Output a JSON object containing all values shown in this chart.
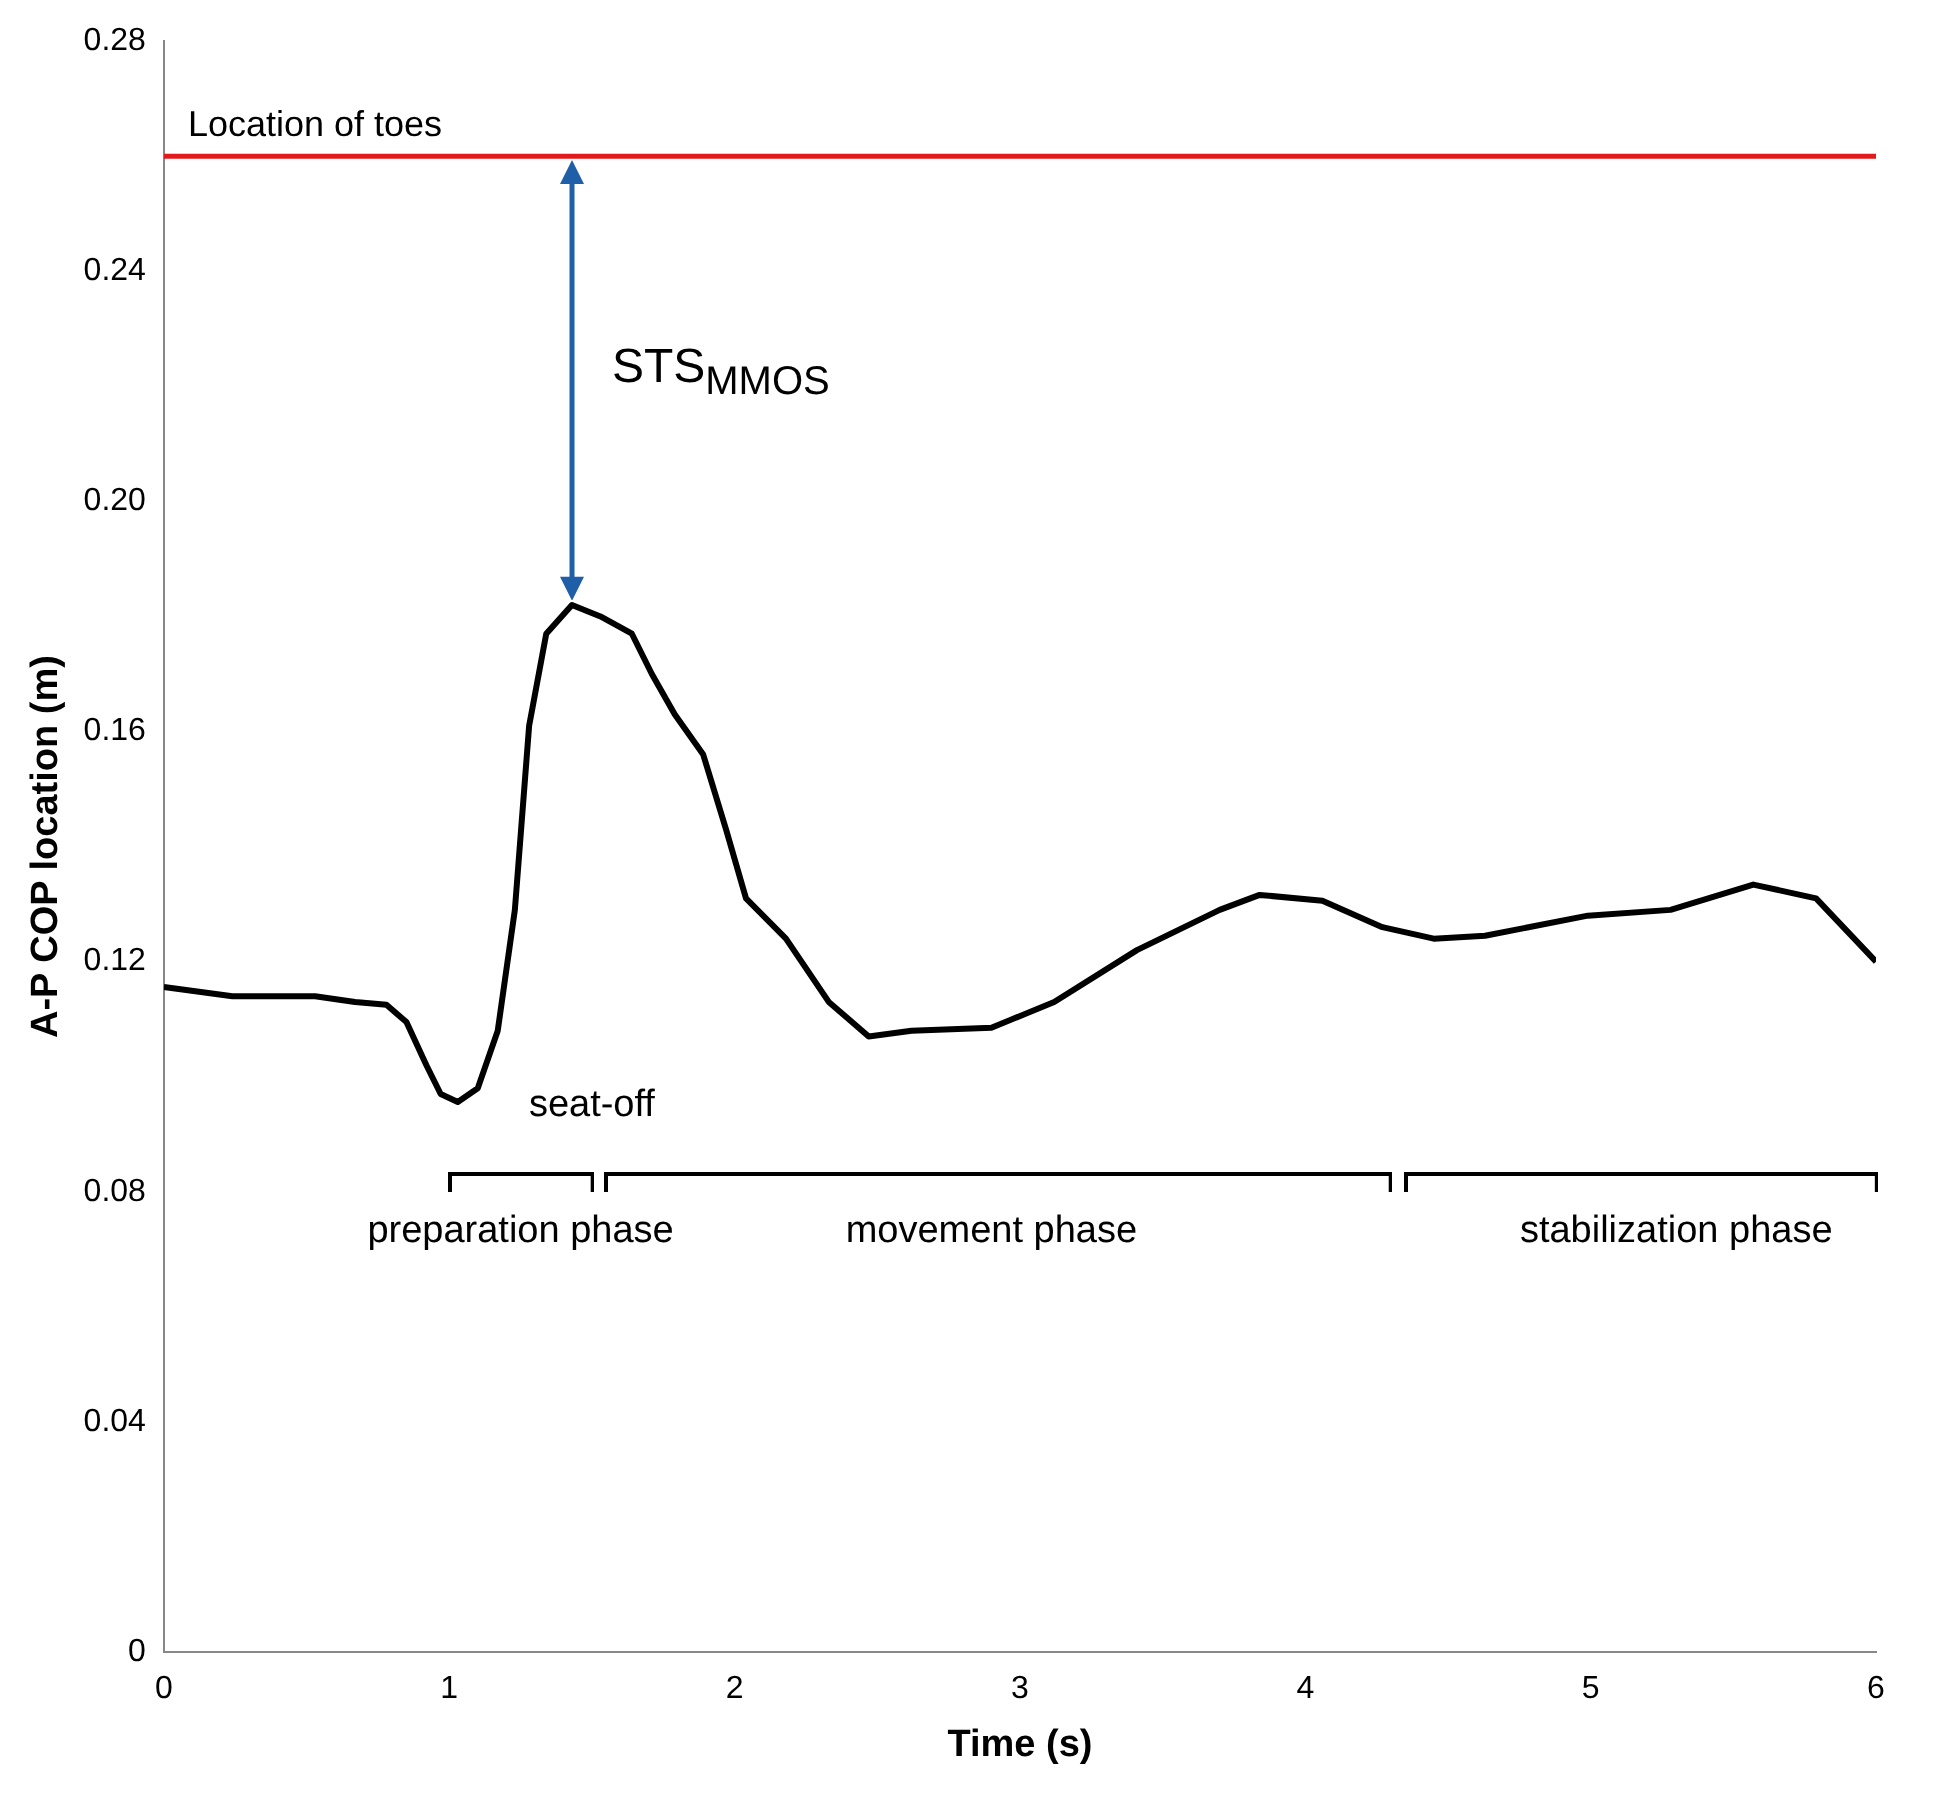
{
  "chart_data": {
    "type": "line",
    "xlabel": "Time (s)",
    "ylabel": "A-P COP location (m)",
    "x": [
      0,
      0.24,
      0.53,
      0.67,
      0.78,
      0.85,
      0.92,
      0.97,
      1.03,
      1.1,
      1.17,
      1.23,
      1.28,
      1.34,
      1.43,
      1.53,
      1.64,
      1.71,
      1.79,
      1.89,
      1.97,
      2.04,
      2.18,
      2.33,
      2.47,
      2.62,
      2.9,
      3.12,
      3.41,
      3.7,
      3.84,
      4.06,
      4.27,
      4.45,
      4.63,
      4.99,
      5.28,
      5.57,
      5.79,
      6.0
    ],
    "series": [
      {
        "color": "#000000",
        "values": [
          0.1156,
          0.114,
          0.114,
          0.113,
          0.1125,
          0.1095,
          0.102,
          0.097,
          0.0956,
          0.098,
          0.108,
          0.129,
          0.161,
          0.177,
          0.182,
          0.18,
          0.177,
          0.17,
          0.163,
          0.156,
          0.143,
          0.131,
          0.124,
          0.113,
          0.107,
          0.108,
          0.1085,
          0.113,
          0.122,
          0.129,
          0.1316,
          0.1306,
          0.126,
          0.124,
          0.1245,
          0.128,
          0.129,
          0.1334,
          0.131,
          0.12
        ]
      }
    ],
    "xlim": [
      0,
      6
    ],
    "xticks": [
      0,
      1,
      2,
      3,
      4,
      5,
      6
    ],
    "ylim": [
      0,
      0.28
    ],
    "yticks": [
      0,
      0.04,
      0.08,
      0.12,
      0.16,
      {
        "value": 0.2,
        "label": "0.20"
      },
      0.24,
      0.28
    ],
    "ref_lines": [
      {
        "axis": "y",
        "value": 0.26,
        "label": "Location of toes",
        "color": "#e31a1c"
      }
    ],
    "annotations": [
      "STS$_{MMOS}$",
      "seat-off",
      "preparation phase",
      "movement phase",
      "stabilization phase"
    ],
    "grid": false,
    "legend": false,
    "marker": "none",
    "line_style": "solid"
  }
}
